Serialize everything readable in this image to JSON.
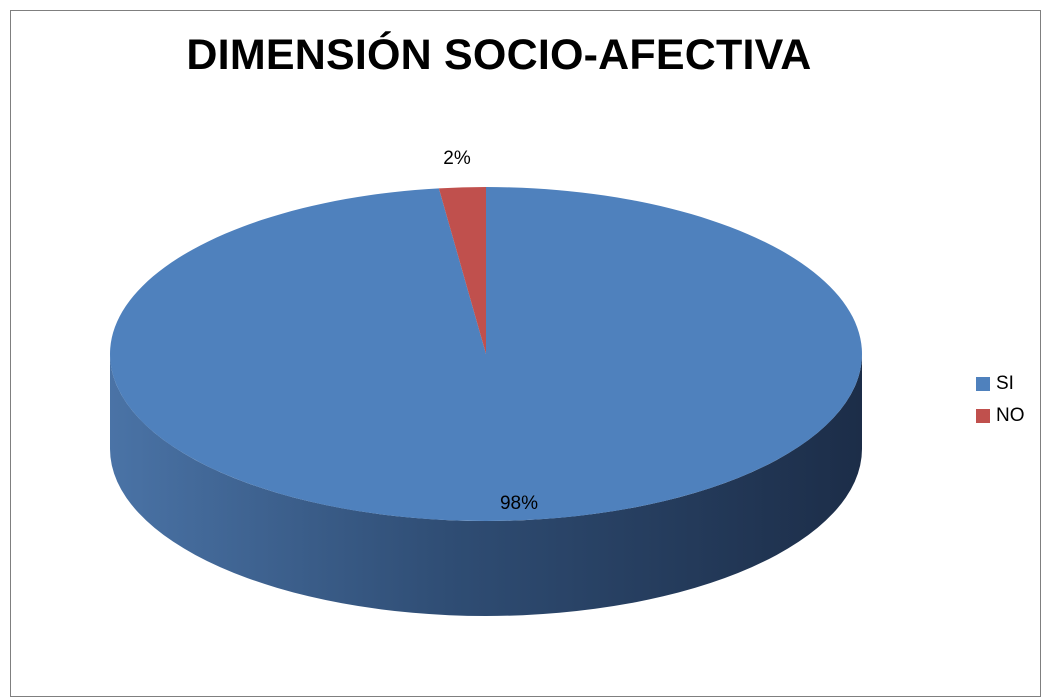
{
  "chart_data": {
    "type": "pie",
    "title": "DIMENSIÓN SOCIO-AFECTIVA",
    "categories": [
      "SI",
      "NO"
    ],
    "values": [
      98,
      2
    ],
    "data_labels": [
      "98%",
      "2%"
    ],
    "colors": [
      "#4f81bd",
      "#c0504d"
    ],
    "legend_position": "right",
    "style": "3d"
  }
}
